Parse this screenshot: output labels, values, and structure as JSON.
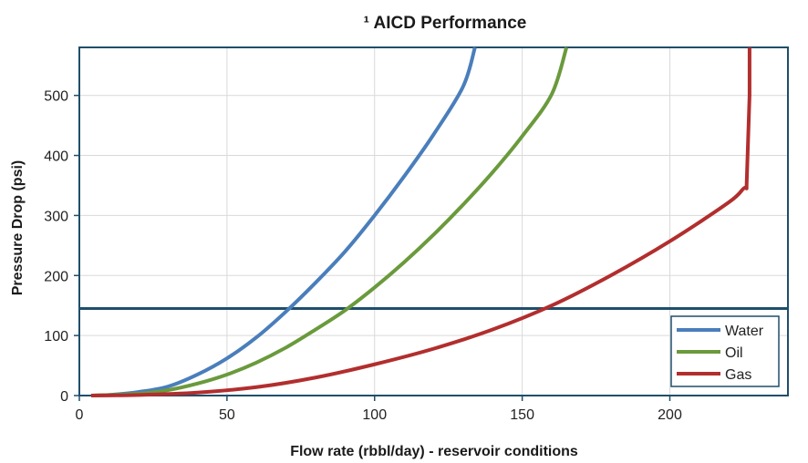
{
  "chart_data": {
    "type": "line",
    "title": "¹ AICD Performance",
    "xlabel": "Flow rate (rbbl/day) - reservoir conditions",
    "ylabel": "Pressure Drop (psi)",
    "xlim": [
      0,
      240
    ],
    "ylim": [
      0,
      580
    ],
    "x_ticks": [
      "0",
      "50",
      "100",
      "150",
      "200"
    ],
    "y_ticks": [
      "0",
      "100",
      "200",
      "300",
      "400",
      "500"
    ],
    "x_tick_values": [
      0,
      50,
      100,
      150,
      200
    ],
    "y_tick_values": [
      0,
      100,
      200,
      300,
      400,
      500
    ],
    "grid": true,
    "legend_position": "bottom-right",
    "reference_line": {
      "y": 145,
      "color": "#1f4e6b"
    },
    "series": [
      {
        "name": "Water",
        "color": "#4a7ebb",
        "x": [
          4,
          10,
          20,
          30,
          40,
          50,
          60,
          70,
          80,
          90,
          100,
          110,
          120,
          130,
          134
        ],
        "y": [
          0,
          1,
          6,
          15,
          35,
          62,
          97,
          140,
          188,
          240,
          300,
          365,
          435,
          515,
          580
        ]
      },
      {
        "name": "Oil",
        "color": "#6a9a3c",
        "x": [
          4,
          10,
          20,
          30,
          40,
          50,
          60,
          70,
          80,
          90,
          100,
          110,
          120,
          130,
          140,
          150,
          160,
          165
        ],
        "y": [
          0,
          1,
          3,
          9,
          20,
          35,
          55,
          80,
          110,
          142,
          180,
          222,
          268,
          318,
          372,
          432,
          502,
          580
        ]
      },
      {
        "name": "Gas",
        "color": "#b22e2e",
        "x": [
          4,
          20,
          40,
          60,
          80,
          100,
          120,
          140,
          160,
          180,
          200,
          220,
          225,
          226,
          226,
          227,
          227
        ],
        "y": [
          0,
          1,
          5,
          14,
          30,
          52,
          78,
          110,
          150,
          200,
          257,
          322,
          345,
          345,
          350,
          500,
          580
        ]
      }
    ]
  }
}
